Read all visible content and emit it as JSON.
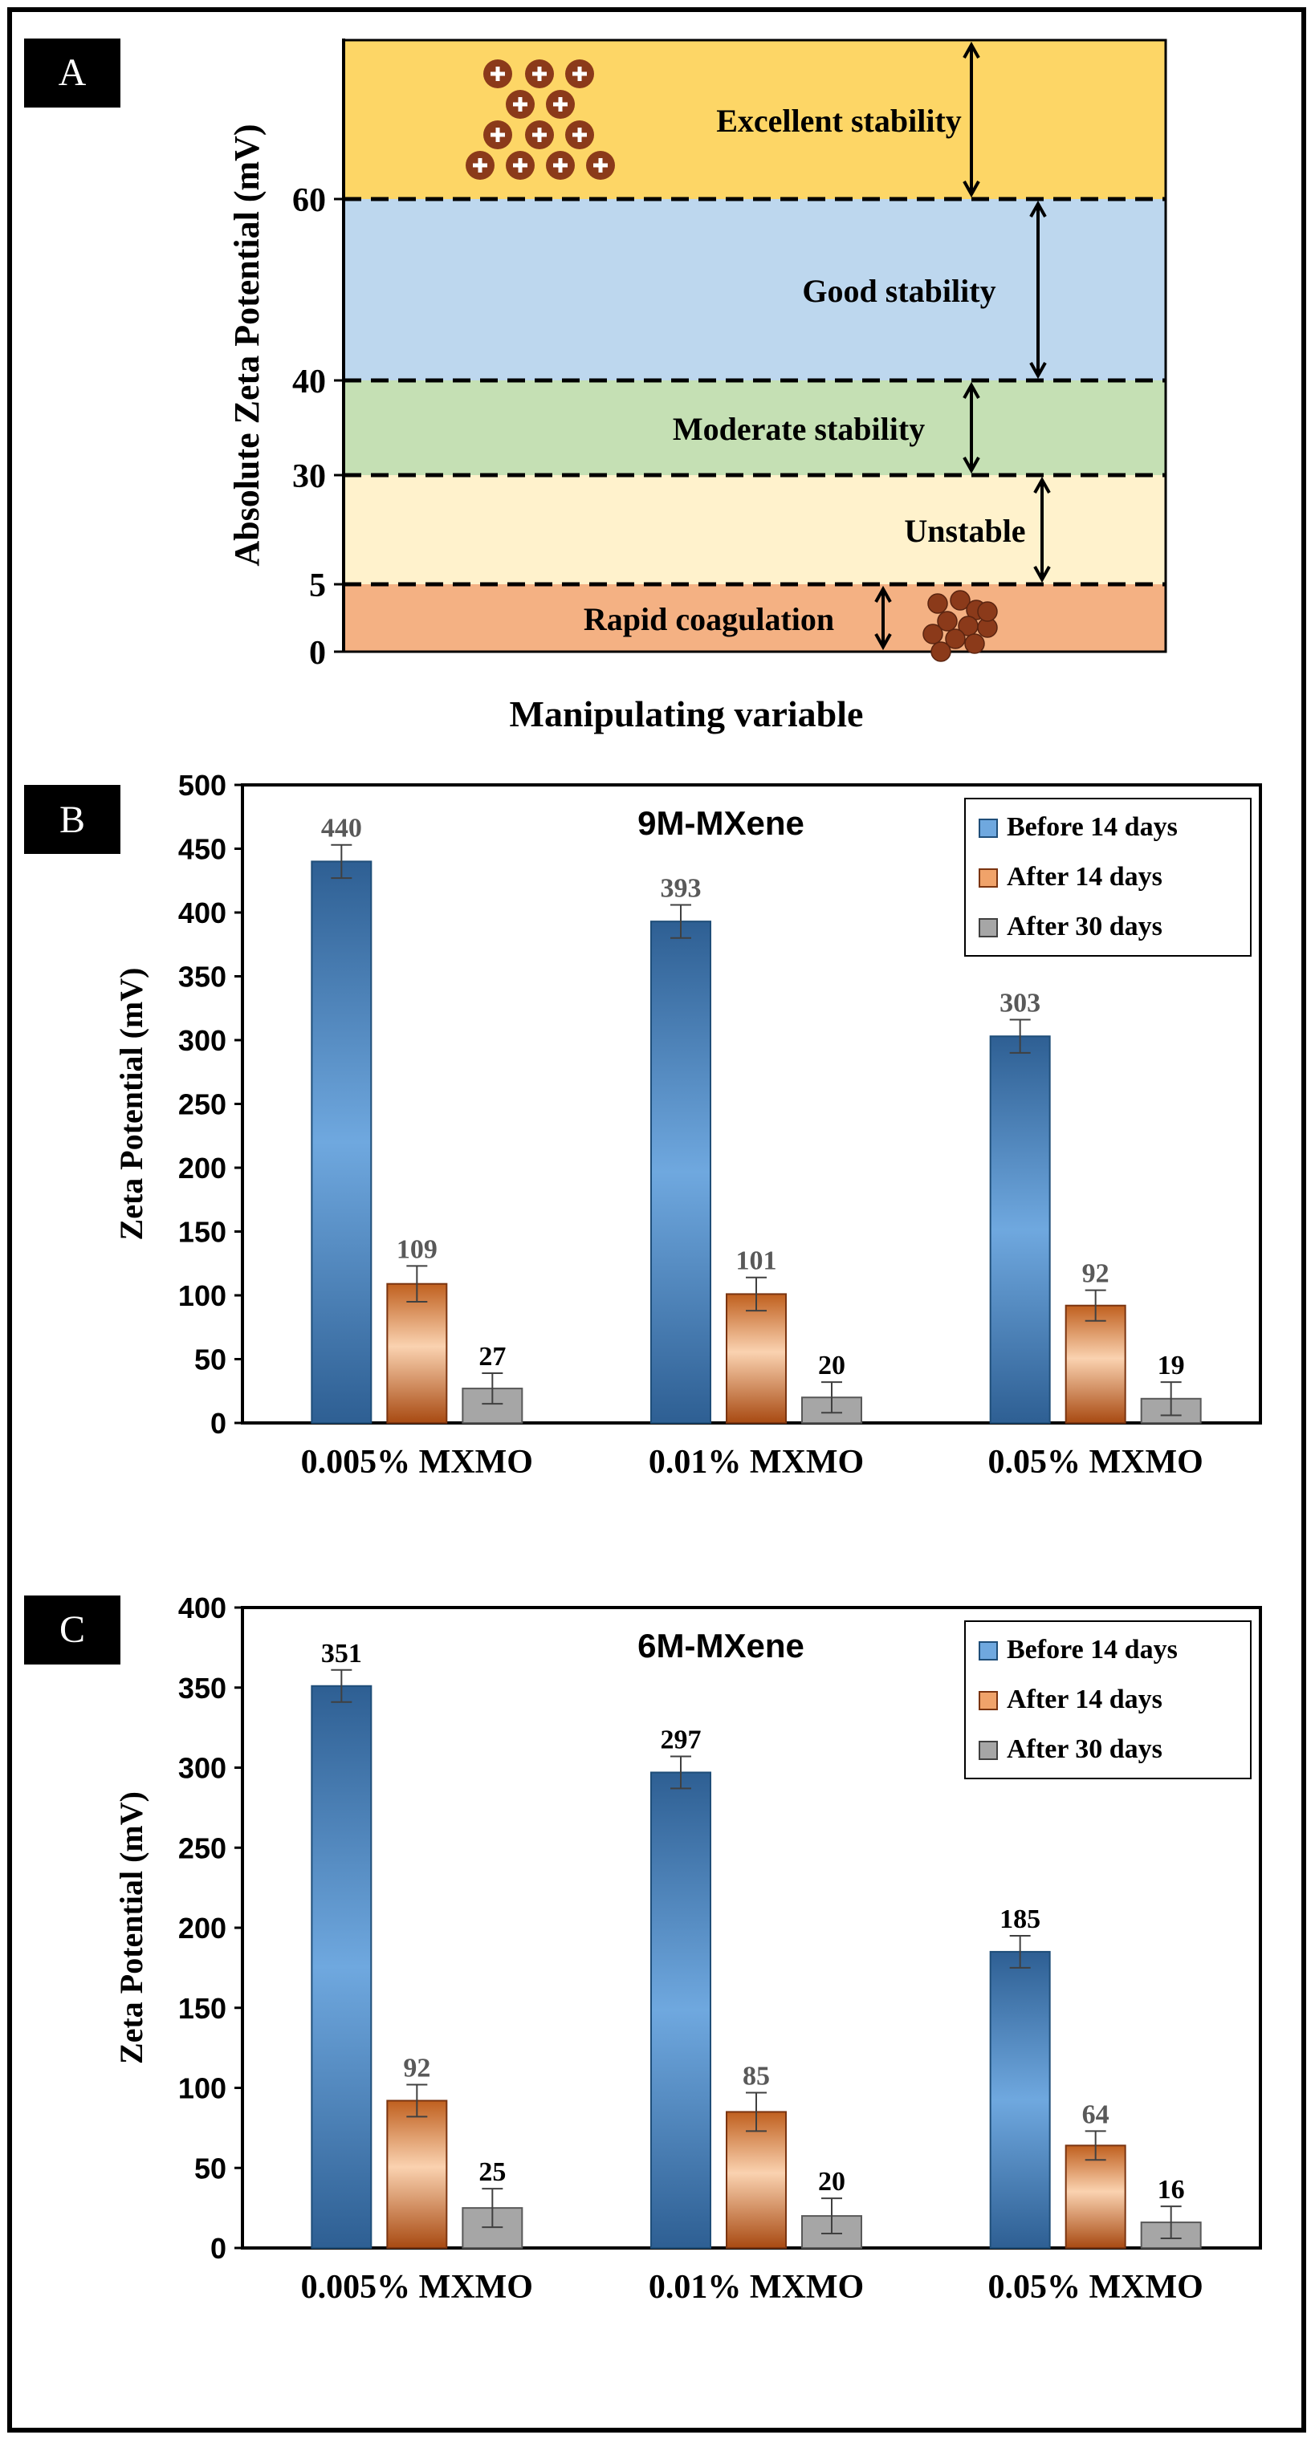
{
  "colors": {
    "excellent": "#FDD666",
    "good": "#BDD7EE",
    "moderate": "#C5E0B4",
    "unstable": "#FFF2CC",
    "rapid": "#F4B183",
    "particle": "#8B3A1A",
    "series_before_dark": "#2E5F93",
    "series_before_light": "#6FA8DF",
    "series_after14_dark": "#B0501A",
    "series_after14_light": "#FAD2B0",
    "series_after30": "#A6A6A6"
  },
  "panels": {
    "a": {
      "label": "A"
    },
    "b": {
      "label": "B"
    },
    "c": {
      "label": "C"
    }
  },
  "chart_data": [
    {
      "type": "diagram",
      "ylabel": "Absolute Zeta Potential (mV)",
      "xlabel": "Manipulating variable",
      "y_ticks": [
        "60",
        "40",
        "30",
        "5",
        "0"
      ],
      "zones": [
        {
          "label": "Excellent stability",
          "from": 60,
          "to": null
        },
        {
          "label": "Good stability",
          "from": 40,
          "to": 60
        },
        {
          "label": "Moderate stability",
          "from": 30,
          "to": 40
        },
        {
          "label": "Unstable",
          "from": 5,
          "to": 30
        },
        {
          "label": "Rapid coagulation",
          "from": 0,
          "to": 5
        }
      ]
    },
    {
      "type": "bar",
      "title": "9M-MXene",
      "ylabel": "Zeta Potential (mV)",
      "xlabel": "",
      "ylim": [
        0,
        500
      ],
      "ytick_step": 50,
      "legend_position": "top-right",
      "categories": [
        "0.005%  MXMO",
        "0.01%  MXMO",
        "0.05%  MXMO"
      ],
      "series": [
        {
          "name": "Before 14 days",
          "values": [
            440,
            393,
            303
          ],
          "errors": [
            13,
            13,
            13
          ]
        },
        {
          "name": "After 14 days",
          "values": [
            109,
            101,
            92
          ],
          "errors": [
            14,
            13,
            12
          ]
        },
        {
          "name": "After 30 days",
          "values": [
            27,
            20,
            19
          ],
          "errors": [
            12,
            12,
            13
          ]
        }
      ]
    },
    {
      "type": "bar",
      "title": "6M-MXene",
      "ylabel": "Zeta Potential (mV)",
      "xlabel": "",
      "ylim": [
        0,
        400
      ],
      "ytick_step": 50,
      "legend_position": "top-right",
      "categories": [
        "0.005%  MXMO",
        "0.01%  MXMO",
        "0.05%  MXMO"
      ],
      "series": [
        {
          "name": "Before 14 days",
          "values": [
            351,
            297,
            185
          ],
          "errors": [
            10,
            10,
            10
          ]
        },
        {
          "name": "After 14 days",
          "values": [
            92,
            85,
            64
          ],
          "errors": [
            10,
            12,
            9
          ]
        },
        {
          "name": "After 30 days",
          "values": [
            25,
            20,
            16
          ],
          "errors": [
            12,
            11,
            10
          ]
        }
      ]
    }
  ]
}
